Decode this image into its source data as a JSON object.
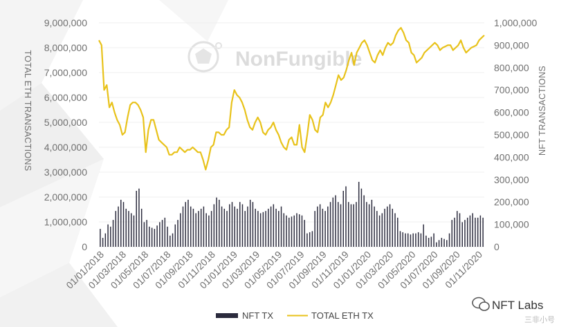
{
  "watermark": "NonFungible",
  "brand": {
    "name": "NFT Labs",
    "sub": "三非小号"
  },
  "chart_data": {
    "type": "bar+line",
    "left_axis": {
      "title": "TOTAL ETH TRANSACTIONS",
      "ylim": [
        0,
        9000000
      ],
      "ticks": [
        {
          "v": 0,
          "label": "0"
        },
        {
          "v": 1000000,
          "label": "1,000,000"
        },
        {
          "v": 2000000,
          "label": "2,000,000"
        },
        {
          "v": 3000000,
          "label": "3,000,000"
        },
        {
          "v": 4000000,
          "label": "4,000,000"
        },
        {
          "v": 5000000,
          "label": "5,000,000"
        },
        {
          "v": 6000000,
          "label": "6,000,000"
        },
        {
          "v": 7000000,
          "label": "7,000,000"
        },
        {
          "v": 8000000,
          "label": "8,000,000"
        },
        {
          "v": 9000000,
          "label": "9,000,000"
        }
      ]
    },
    "right_axis": {
      "title": "NFT TRANSACTIONS",
      "ylim": [
        0,
        1000000
      ],
      "ticks": [
        {
          "v": 0,
          "label": "0"
        },
        {
          "v": 100000,
          "label": "100,000"
        },
        {
          "v": 200000,
          "label": "200,000"
        },
        {
          "v": 300000,
          "label": "300,000"
        },
        {
          "v": 400000,
          "label": "400,000"
        },
        {
          "v": 500000,
          "label": "500,000"
        },
        {
          "v": 600000,
          "label": "600,000"
        },
        {
          "v": 700000,
          "label": "700,000"
        },
        {
          "v": 800000,
          "label": "800,000"
        },
        {
          "v": 900000,
          "label": "900,000"
        },
        {
          "v": 1000000,
          "label": "1,000,000"
        }
      ]
    },
    "x_axis": {
      "start": "2018-01-01",
      "end": "2020-12-31",
      "ticks": [
        "01/01/2018",
        "01/03/2018",
        "01/05/2018",
        "01/07/2018",
        "01/09/2018",
        "01/11/2018",
        "01/01/2019",
        "01/03/2019",
        "01/05/2019",
        "01/07/2019",
        "01/09/2019",
        "01/11/2019",
        "01/01/2020",
        "01/03/2020",
        "01/05/2020",
        "01/07/2020",
        "01/09/2020",
        "01/11/2020"
      ]
    },
    "legend": {
      "position": "bottom",
      "items": [
        {
          "name": "NFT TX",
          "color": "#2b2b3d",
          "kind": "bar"
        },
        {
          "name": "TOTAL ETH TX",
          "color": "#e8c21a",
          "kind": "line"
        }
      ]
    },
    "bar_color": "#2b2b3d",
    "line_color": "#e8c21a",
    "nft_tx_weekly": [
      80000,
      40000,
      60000,
      100000,
      90000,
      120000,
      160000,
      180000,
      210000,
      200000,
      170000,
      160000,
      150000,
      140000,
      250000,
      260000,
      170000,
      110000,
      120000,
      90000,
      85000,
      80000,
      95000,
      110000,
      120000,
      130000,
      90000,
      50000,
      60000,
      100000,
      120000,
      150000,
      180000,
      200000,
      210000,
      180000,
      170000,
      150000,
      160000,
      170000,
      180000,
      150000,
      140000,
      160000,
      190000,
      220000,
      210000,
      180000,
      170000,
      160000,
      190000,
      200000,
      180000,
      170000,
      200000,
      190000,
      160000,
      180000,
      210000,
      200000,
      170000,
      160000,
      150000,
      155000,
      160000,
      170000,
      180000,
      190000,
      170000,
      160000,
      180000,
      150000,
      140000,
      130000,
      135000,
      140000,
      150000,
      145000,
      140000,
      120000,
      60000,
      65000,
      70000,
      160000,
      180000,
      190000,
      170000,
      160000,
      180000,
      200000,
      220000,
      230000,
      200000,
      190000,
      250000,
      270000,
      200000,
      190000,
      190000,
      200000,
      290000,
      260000,
      230000,
      200000,
      190000,
      210000,
      180000,
      160000,
      140000,
      150000,
      170000,
      180000,
      190000,
      170000,
      150000,
      130000,
      70000,
      65000,
      60000,
      60000,
      55000,
      60000,
      60000,
      65000,
      60000,
      100000,
      50000,
      40000,
      45000,
      60000,
      20000,
      30000,
      40000,
      35000,
      30000,
      60000,
      120000,
      130000,
      160000,
      150000,
      110000,
      120000,
      130000,
      140000,
      150000,
      130000,
      130000,
      140000,
      130000
    ],
    "total_eth_tx_weekly": [
      8300000,
      8100000,
      6300000,
      6500000,
      5600000,
      5800000,
      5400000,
      5100000,
      4900000,
      4500000,
      4600000,
      5200000,
      5700000,
      5800000,
      5800000,
      5700000,
      5500000,
      5200000,
      3800000,
      4700000,
      5100000,
      5100000,
      4700000,
      4300000,
      4200000,
      4100000,
      4000000,
      3700000,
      3700000,
      3800000,
      3800000,
      4000000,
      3900000,
      3800000,
      3900000,
      3900000,
      4000000,
      3900000,
      3800000,
      3800000,
      3500000,
      3100000,
      3500000,
      4000000,
      4100000,
      4600000,
      4600000,
      4500000,
      4500000,
      4700000,
      4800000,
      5800000,
      6300000,
      6100000,
      6000000,
      5800000,
      5500000,
      5100000,
      4800000,
      4700000,
      5000000,
      5200000,
      5000000,
      4600000,
      4500000,
      4700000,
      4800000,
      5000000,
      4700000,
      4500000,
      4200000,
      4000000,
      3900000,
      4300000,
      4400000,
      4100000,
      4100000,
      4900000,
      4000000,
      3800000,
      4500000,
      5300000,
      5100000,
      4700000,
      4600000,
      5200000,
      5300000,
      5800000,
      5600000,
      5800000,
      6100000,
      6500000,
      6900000,
      6700000,
      6800000,
      7100000,
      7500000,
      7800000,
      7300000,
      7800000,
      8000000,
      8200000,
      8300000,
      8100000,
      7800000,
      7500000,
      7400000,
      7700000,
      7900000,
      7700000,
      8000000,
      8200000,
      8100000,
      8200000,
      8500000,
      8700000,
      8800000,
      8600000,
      8300000,
      8200000,
      7800000,
      7700000,
      7400000,
      7500000,
      7600000,
      7800000,
      7900000,
      8000000,
      8100000,
      8200000,
      8100000,
      7900000,
      8000000,
      8050000,
      8100000,
      8100000,
      7900000,
      8000000,
      8100000,
      8300000,
      8000000,
      7800000,
      7900000,
      8000000,
      8050000,
      8100000,
      8300000,
      8400000,
      8500000
    ]
  }
}
